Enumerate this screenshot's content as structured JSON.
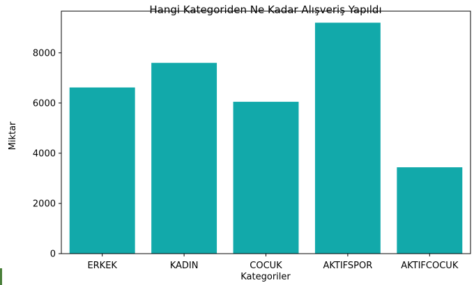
{
  "chart_data": {
    "type": "bar",
    "title": "Hangi Kategoriden Ne Kadar Alışveriş Yapıldı",
    "xlabel": "Kategoriler",
    "ylabel": "Miktar",
    "categories": [
      "ERKEK",
      "KADIN",
      "COCUK",
      "AKTIFSPOR",
      "AKTIFCOCUK"
    ],
    "values": [
      6620,
      7600,
      6050,
      9200,
      3440
    ],
    "ylim": [
      0,
      9660
    ],
    "yticks": [
      0,
      2000,
      4000,
      6000,
      8000
    ],
    "bar_color": "#12a9aa",
    "grid": false
  }
}
